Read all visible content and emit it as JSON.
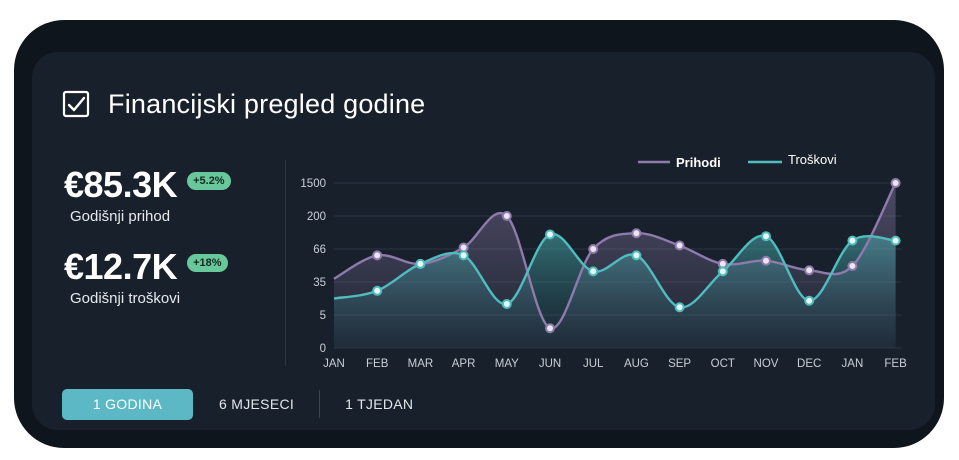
{
  "header": {
    "title": "Financijski pregled godine",
    "icon": "checkbox-icon"
  },
  "stats": [
    {
      "value": "€85.3K",
      "badge": "+5.2%",
      "label": "Godišnji prihod"
    },
    {
      "value": "€12.7K",
      "badge": "+18%",
      "label": "Godišnji troškovi"
    }
  ],
  "tabs": [
    "1 GODINA",
    "6 MJESECI",
    "1 TJEDAN"
  ],
  "colors": {
    "prihodi": "#8e7aab",
    "troskovi": "#4fbcbd",
    "accent": "#5bb8c4",
    "badge": "#69c89b"
  },
  "chart_data": {
    "type": "line",
    "legend_position": "top-right",
    "grid": true,
    "categories": [
      "JAN",
      "FEB",
      "MAR",
      "APR",
      "MAY",
      "JUN",
      "JUL",
      "AUG",
      "SEP",
      "OCT",
      "NOV",
      "DEC",
      "JAN",
      "FEB"
    ],
    "y_ticks": [
      "0",
      "5",
      "35",
      "66",
      "200",
      "1500"
    ],
    "series": [
      {
        "name": "Prihodi",
        "values": [
          38,
          60,
          52,
          72,
          200,
          3,
          66,
          130,
          80,
          52,
          55,
          46,
          50,
          1500
        ]
      },
      {
        "name": "Troškovi",
        "values": [
          20,
          27,
          52,
          60,
          15,
          125,
          45,
          60,
          12,
          45,
          118,
          18,
          100,
          100
        ]
      }
    ]
  }
}
